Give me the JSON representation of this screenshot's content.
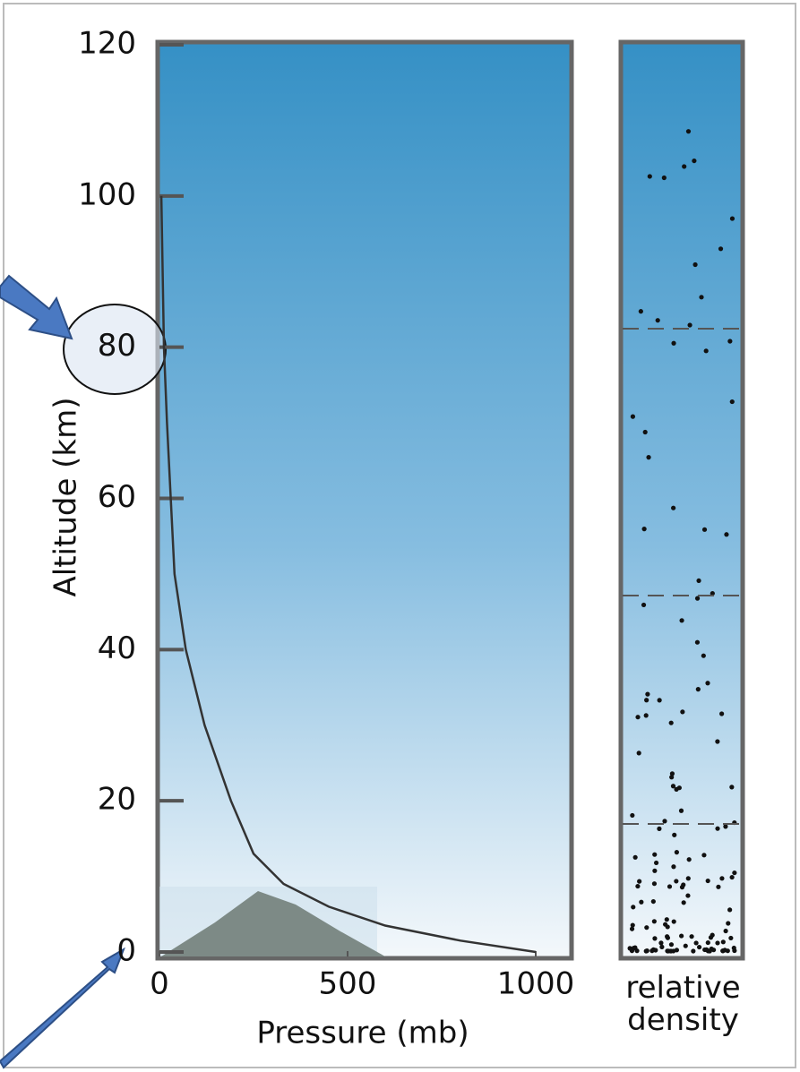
{
  "chart_data": {
    "type": "line",
    "x_label": "Pressure (mb)",
    "y_label": "Altitude (km)",
    "panel_label": "relative density",
    "x": [
      1000,
      800,
      600,
      450,
      330,
      250,
      190,
      120,
      70,
      40,
      30,
      20,
      12,
      5
    ],
    "values": [
      0,
      1.5,
      3.5,
      6,
      9,
      13,
      20,
      30,
      40,
      50,
      60,
      70,
      80,
      100
    ],
    "color": "#333333",
    "xlim": [
      0,
      1100
    ],
    "ylim": [
      0,
      120
    ],
    "xticks": [
      0,
      500,
      1000
    ],
    "yticks": [
      0,
      20,
      40,
      60,
      80,
      100,
      120
    ]
  }
}
